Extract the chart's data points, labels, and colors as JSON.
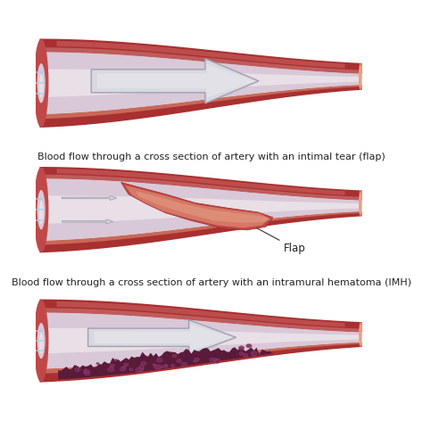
{
  "bg_color": "#ffffff",
  "wall_dark": "#a83030",
  "wall_mid": "#c04848",
  "wall_light": "#d87070",
  "wall_salmon": "#e8a080",
  "wall_highlight": "#f0c0a0",
  "lumen_pink": "#e8c8c0",
  "lumen_lavender": "#d8c8d8",
  "lumen_white": "#f5f0f0",
  "inner_wall_pink": "#d07878",
  "arrow_fill": "#d8d8e0",
  "arrow_edge": "#a0a0b0",
  "arrow_outline": "#b8b8c8",
  "blue_line": "#a0d0e8",
  "flap_body": "#b84040",
  "flap_light": "#d06060",
  "flap_highlight": "#e09080",
  "hematoma_dark": "#5a1a3a",
  "hematoma_mid": "#7a2a5a",
  "hematoma_light": "#9a4a7a",
  "hematoma_blob": "#6a2248",
  "text_color": "#222222",
  "text_size": 8.0,
  "label1": "Blood flow through a cross section of artery with an intimal tear (flap)",
  "label2": "Blood flow through a cross section of artery with an intramural hematoma (IMH)",
  "flap_label": "Flap",
  "fig_width": 4.74,
  "fig_height": 4.72
}
